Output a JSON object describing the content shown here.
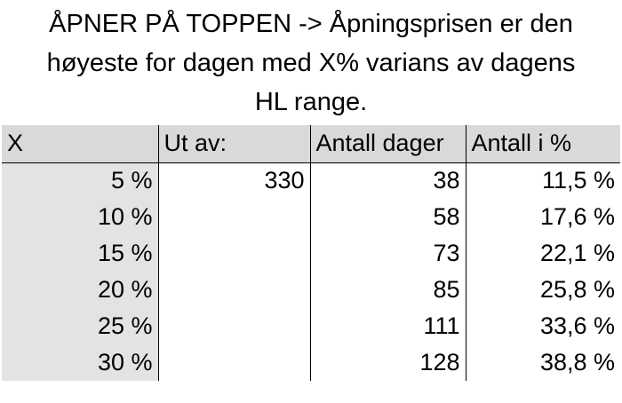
{
  "title": {
    "line1": "ÅPNER PÅ TOPPEN -> Åpningsprisen er den",
    "line2": "høyeste for dagen med X% varians av dagens",
    "line3": "HL range."
  },
  "table": {
    "headers": [
      "X",
      "Ut av:",
      "Antall dager",
      "Antall i %"
    ],
    "rows": [
      [
        "5 %",
        "330",
        "38",
        "11,5 %"
      ],
      [
        "10 %",
        "",
        "58",
        "17,6 %"
      ],
      [
        "15 %",
        "",
        "73",
        "22,1 %"
      ],
      [
        "20 %",
        "",
        "85",
        "25,8 %"
      ],
      [
        "25 %",
        "",
        "111",
        "33,6 %"
      ],
      [
        "30 %",
        "",
        "128",
        "38,8 %"
      ]
    ]
  }
}
